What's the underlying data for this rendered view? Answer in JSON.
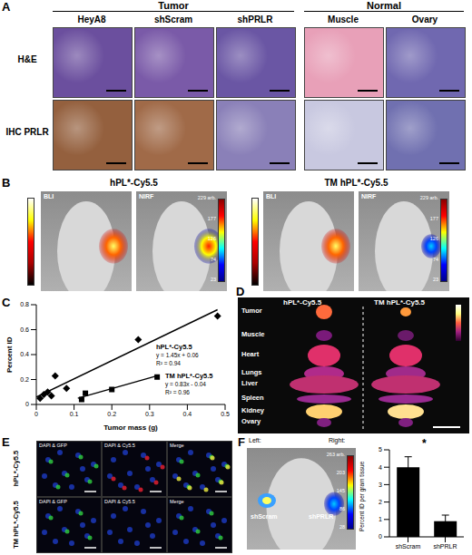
{
  "panels": {
    "A": {
      "label": "A",
      "groups": [
        {
          "name": "Tumor",
          "columns": [
            "HeyA8",
            "shScram",
            "shPRLR"
          ]
        },
        {
          "name": "Normal",
          "columns": [
            "Muscle",
            "Ovary"
          ]
        }
      ],
      "rows": [
        "H&E",
        "IHC PRLR"
      ]
    },
    "B": {
      "label": "B",
      "probes": [
        "hPL*-Cy5.5",
        "TM hPL*-Cy5.5"
      ],
      "modalities": [
        "BLI",
        "NIRF"
      ],
      "colorbar_labels": [
        "229 arb.",
        "177",
        "126",
        "74",
        "23"
      ]
    },
    "C": {
      "label": "C"
    },
    "D": {
      "label": "D",
      "probes": [
        "hPL*-Cy5.5",
        "TM hPL*-Cy5.5"
      ],
      "organs": [
        "Tumor",
        "Muscle",
        "Heart",
        "Lungs",
        "Liver",
        "Spleen",
        "Kidney",
        "Ovary"
      ]
    },
    "E": {
      "label": "E",
      "probes": [
        "hPL*-Cy5.5",
        "TM hPL*-Cy5.5"
      ],
      "channels": [
        "DAPI & GFP",
        "DAPI & Cy5.5",
        "Merge"
      ]
    },
    "F": {
      "label": "F",
      "image_labels": {
        "left": "Left:",
        "right": "Right:",
        "groups": [
          "shScram",
          "shPRLR"
        ]
      },
      "colorbar_labels": [
        "263 arb.",
        "203",
        "145",
        "86",
        "28"
      ]
    }
  },
  "chart_data": [
    {
      "type": "scatter",
      "x_label": "Tumor mass (g)",
      "y_label": "Percent ID",
      "xlim": [
        0,
        0.5
      ],
      "xticks": [
        0,
        0.1,
        0.2,
        0.3,
        0.4,
        0.5
      ],
      "ylim": [
        0,
        0.8
      ],
      "yticks": [
        0,
        0.2,
        0.4,
        0.6,
        0.8
      ],
      "series": [
        {
          "name": "hPL*-Cy5.5",
          "color": "#000000",
          "marker": "diamond",
          "x": [
            0.01,
            0.02,
            0.03,
            0.04,
            0.05,
            0.08,
            0.27,
            0.48
          ],
          "values": [
            0.05,
            0.08,
            0.1,
            0.07,
            0.23,
            0.13,
            0.52,
            0.71
          ],
          "trend": {
            "x": [
              0,
              0.48
            ],
            "values": [
              0.06,
              0.76
            ]
          },
          "annotation": [
            "y = 1.45x + 0.06",
            "R² = 0.94"
          ]
        },
        {
          "name": "TM hPL*-Cy5.5",
          "color": "#000000",
          "marker": "square",
          "x": [
            0.12,
            0.13,
            0.2,
            0.32
          ],
          "values": [
            0.04,
            0.09,
            0.12,
            0.22
          ],
          "trend": {
            "x": [
              0.11,
              0.32
            ],
            "values": [
              0.05,
              0.23
            ]
          },
          "annotation": [
            "y = 0.83x - 0.04",
            "R² = 0.96"
          ]
        }
      ]
    },
    {
      "type": "bar",
      "categories": [
        "shScram",
        "shPRLR"
      ],
      "values": [
        4.0,
        0.9
      ],
      "errors": [
        0.6,
        0.35
      ],
      "color": "#000000",
      "y_label": "Percent ID per gram tissue",
      "ylim": [
        0,
        5
      ],
      "yticks": [
        0,
        1,
        2,
        3,
        4,
        5
      ],
      "annotation": "*"
    }
  ]
}
